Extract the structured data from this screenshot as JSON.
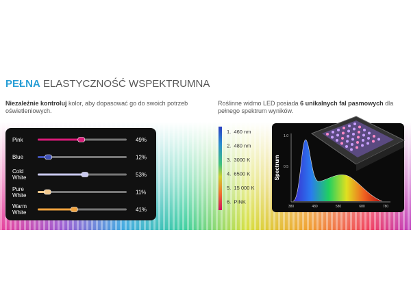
{
  "title": {
    "accent": "PEŁNA",
    "rest": "ELASTYCZNOŚĆ WSPEKTRUMNA"
  },
  "intro_left": {
    "bold": "Niezależnie kontroluj",
    "text": "kolor, aby dopasować go do swoich potrzeb oświetleniowych."
  },
  "intro_right": {
    "text_before": "Roślinne widmo LED posiada",
    "bold": "6 unikalnych fal pasmowych",
    "text_after": "dla pełnego spektrum wyników."
  },
  "sliders": [
    {
      "label": "Pink",
      "value": 49,
      "value_label": "49%",
      "color": "#d81b78"
    },
    {
      "label": "Blue",
      "value": 12,
      "value_label": "12%",
      "color": "#3f51b5"
    },
    {
      "label": "Cold White",
      "value": 53,
      "value_label": "53%",
      "color": "#c9c9ee"
    },
    {
      "label": "Pure White",
      "value": 11,
      "value_label": "11%",
      "color": "#f3c98c"
    },
    {
      "label": "Warm White",
      "value": 41,
      "value_label": "41%",
      "color": "#f0a23e"
    }
  ],
  "bands": [
    "1.  460 nm",
    "2.  480 nm",
    "3.  3000 K",
    "4.  6500 K",
    "5.  15 000 K",
    "6.  PINK"
  ],
  "spectrum": {
    "axis_label": "Spectrum",
    "y_tick_labels": [
      "1.0",
      "0.5"
    ],
    "x_tick_labels": [
      "380",
      "480",
      "580",
      "680",
      "780"
    ]
  }
}
